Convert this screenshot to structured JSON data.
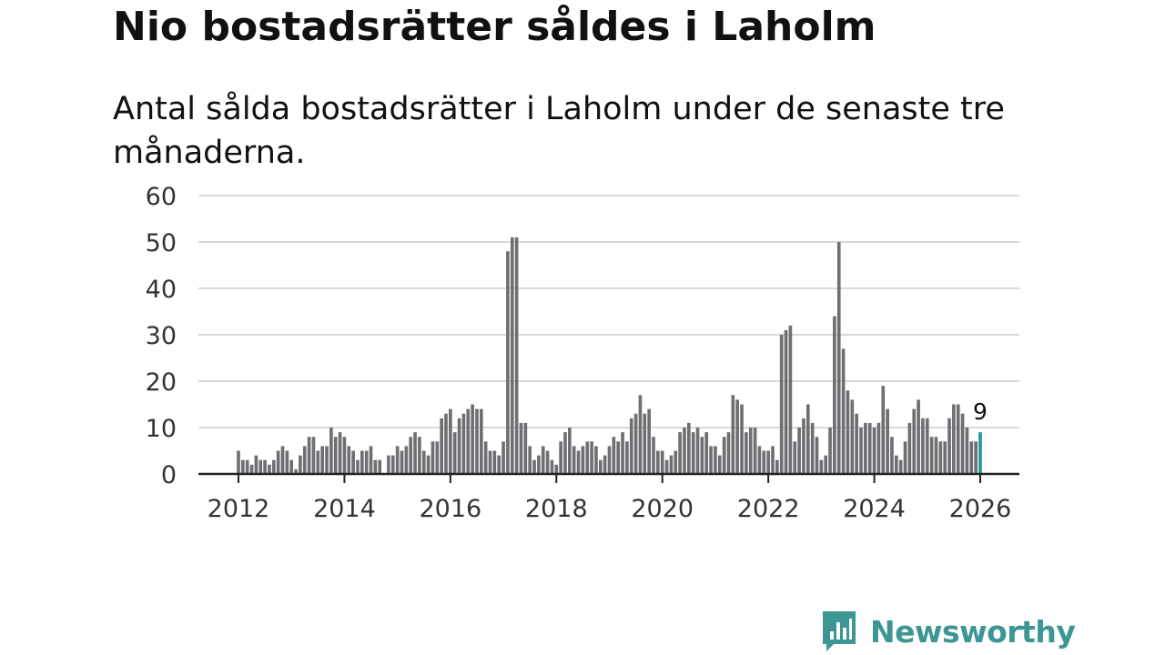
{
  "title": "Nio bostadsrätter såldes i Laholm",
  "subtitle": "Antal sålda bostadsrätter i Laholm under de senaste tre månaderna.",
  "brand": {
    "name": "Newsworthy",
    "icon": "newsworthy-logo-icon",
    "color": "#3d9594"
  },
  "colors": {
    "bar": "#6f6f73",
    "highlight": "#1e9a9a",
    "grid": "#d9d9d9",
    "axis": "#222222"
  },
  "chart_data": {
    "type": "bar",
    "title": "Nio bostadsrätter såldes i Laholm",
    "subtitle": "Antal sålda bostadsrätter i Laholm under de senaste tre månaderna.",
    "xlabel": "",
    "ylabel": "",
    "ylim": [
      0,
      60
    ],
    "yticks": [
      0,
      10,
      20,
      30,
      40,
      50,
      60
    ],
    "xticks": [
      "2012",
      "2014",
      "2016",
      "2018",
      "2020",
      "2022",
      "2024",
      "2026"
    ],
    "grid": true,
    "x_start": "2012-01",
    "x_interval": "month",
    "highlight_last": true,
    "last_value_label": "9",
    "values": [
      5,
      3,
      3,
      2,
      4,
      3,
      3,
      2,
      3,
      5,
      6,
      5,
      3,
      1,
      4,
      6,
      8,
      8,
      5,
      6,
      6,
      10,
      8,
      9,
      8,
      6,
      5,
      3,
      5,
      5,
      6,
      3,
      3,
      0,
      4,
      4,
      6,
      5,
      6,
      8,
      9,
      8,
      5,
      4,
      7,
      7,
      12,
      13,
      14,
      9,
      12,
      13,
      14,
      15,
      14,
      14,
      7,
      5,
      5,
      4,
      7,
      48,
      51,
      51,
      11,
      11,
      6,
      3,
      4,
      6,
      5,
      3,
      2,
      7,
      9,
      10,
      6,
      5,
      6,
      7,
      7,
      6,
      3,
      4,
      6,
      8,
      7,
      9,
      7,
      12,
      13,
      17,
      13,
      14,
      8,
      5,
      5,
      3,
      4,
      5,
      9,
      10,
      11,
      9,
      10,
      8,
      9,
      6,
      6,
      4,
      8,
      9,
      17,
      16,
      15,
      9,
      10,
      10,
      6,
      5,
      5,
      6,
      3,
      30,
      31,
      32,
      7,
      10,
      12,
      15,
      11,
      8,
      3,
      4,
      10,
      34,
      50,
      27,
      18,
      16,
      13,
      10,
      11,
      11,
      10,
      11,
      19,
      14,
      8,
      4,
      3,
      7,
      11,
      14,
      16,
      12,
      12,
      8,
      8,
      7,
      7,
      12,
      15,
      15,
      13,
      10,
      7,
      7,
      9
    ]
  }
}
